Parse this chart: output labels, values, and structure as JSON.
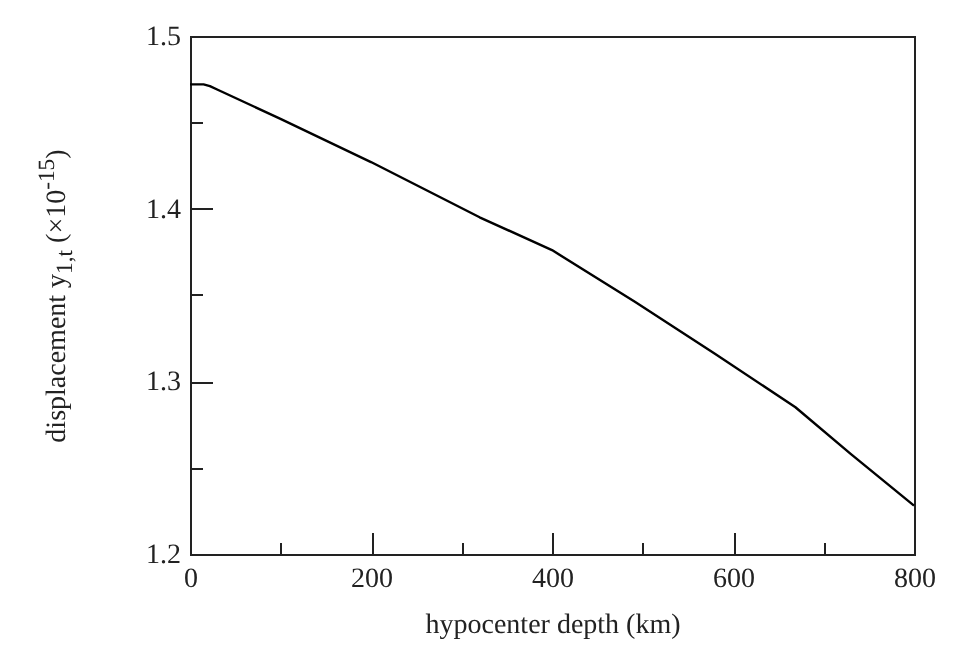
{
  "chart_data": {
    "type": "line",
    "xlabel": "hypocenter depth (km)",
    "ylabel": "displacement y$_{1,t}$ (×10$^{-15}$)",
    "x": [
      0,
      15,
      22,
      30,
      100,
      200,
      320,
      400,
      492,
      580,
      669,
      730,
      800
    ],
    "series": [
      {
        "color": "#000000",
        "values": [
          1.472,
          1.472,
          1.471,
          1.469,
          1.452,
          1.427,
          1.395,
          1.376,
          1.346,
          1.316,
          1.285,
          1.258,
          1.228
        ]
      }
    ],
    "xlim": [
      0,
      800
    ],
    "xticks": [
      0,
      {
        "value": 100,
        "label": null
      },
      200,
      {
        "value": 300,
        "label": null
      },
      400,
      {
        "value": 500,
        "label": null
      },
      600,
      {
        "value": 700,
        "label": null
      },
      800
    ],
    "ylim": [
      1.2,
      1.5
    ],
    "yticks": [
      1.2,
      {
        "value": 1.25,
        "label": null
      },
      1.3,
      {
        "value": 1.35,
        "label": null
      },
      1.4,
      {
        "value": 1.45,
        "label": null
      },
      1.5
    ],
    "grid": false,
    "marker": "none",
    "line_style": "solid"
  }
}
